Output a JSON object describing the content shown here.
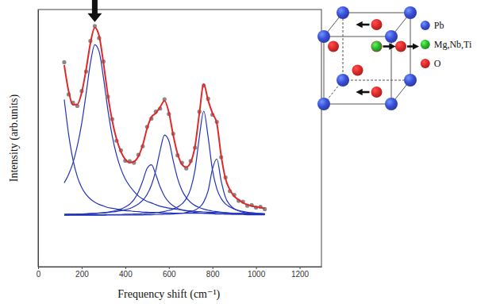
{
  "chart_data": {
    "type": "line",
    "x_label": "Frequency shift (cm⁻¹)",
    "y_label": "Intensity (arb.units)",
    "xlim": [
      0,
      1300
    ],
    "xticks": [
      0,
      200,
      400,
      600,
      800,
      1000,
      1200
    ],
    "ylim": [
      0,
      100
    ],
    "tick_labels": "x",
    "grid": false,
    "x": [
      120,
      140,
      160,
      180,
      200,
      220,
      240,
      260,
      280,
      300,
      320,
      340,
      360,
      380,
      400,
      420,
      440,
      460,
      480,
      500,
      520,
      540,
      560,
      580,
      600,
      620,
      640,
      660,
      680,
      700,
      720,
      740,
      760,
      780,
      800,
      820,
      840,
      860,
      880,
      900,
      920,
      940,
      960,
      980,
      1000,
      1020,
      1040
    ],
    "series": [
      {
        "type": "line",
        "color": "#2233bb",
        "line_style": "solid",
        "values": [
          65,
          51.5,
          41.6,
          35,
          30.8,
          28.1,
          26.3,
          25.1,
          24.2,
          23.6,
          23,
          22.7,
          22.4,
          22.1,
          21.8,
          21.7,
          21.5,
          21.4,
          21.2,
          21.2,
          21.1,
          21.1,
          20.9,
          20.9,
          20.9,
          20.8,
          20.8,
          20.8,
          20.8,
          20.8,
          20.8,
          20.8,
          20.8,
          20.8,
          20.8,
          20.6,
          20.6,
          20.6,
          20.6,
          20.6,
          20.6,
          20.6,
          20.6,
          20.6,
          20.6,
          20.6,
          20.6
        ]
      },
      {
        "type": "line",
        "color": "#2233bb",
        "line_style": "solid",
        "values": [
          32.6,
          35.9,
          40.4,
          47,
          55.7,
          67.1,
          79.1,
          86.3,
          83.6,
          73.4,
          61.1,
          50.9,
          43.4,
          38,
          34.1,
          31.4,
          29.3,
          27.5,
          26.3,
          25.4,
          24.8,
          24.1,
          23.5,
          23.1,
          22.8,
          22.5,
          22.3,
          22,
          21.8,
          21.7,
          21.5,
          21.4,
          21.3,
          21.2,
          21.1,
          21.1,
          21,
          20.9,
          20.8,
          20.8,
          20.8,
          20.7,
          20.7,
          20.6,
          20.6,
          20.6,
          20.5
        ]
      },
      {
        "type": "line",
        "color": "#2233bb",
        "line_style": "solid",
        "values": [
          20.3,
          20.4,
          20.4,
          20.4,
          20.5,
          20.5,
          20.6,
          20.7,
          20.9,
          21,
          21.2,
          21.5,
          21.9,
          22.4,
          23.2,
          24.3,
          26.1,
          29,
          33.3,
          38.2,
          39.6,
          35.8,
          31,
          27.4,
          25.1,
          23.7,
          22.7,
          22.1,
          21.7,
          21.4,
          21.1,
          20.9,
          20.8,
          20.7,
          20.6,
          20.5,
          20.5,
          20.4,
          20.4,
          20.3,
          20.3,
          20.3,
          20.2,
          20.2,
          20.2,
          20.2,
          20.2
        ]
      },
      {
        "type": "line",
        "color": "#2233bb",
        "line_style": "solid",
        "values": [
          20.4,
          20.4,
          20.4,
          20.5,
          20.5,
          20.6,
          20.7,
          20.7,
          20.8,
          20.9,
          21.1,
          21.3,
          21.5,
          21.8,
          22.1,
          22.6,
          23.4,
          24.4,
          25.8,
          28.1,
          31.7,
          37.4,
          45.2,
          51.2,
          48.9,
          41.2,
          34.3,
          29.7,
          26.8,
          25,
          23.8,
          23,
          22.4,
          22,
          21.6,
          21.4,
          21.2,
          21,
          20.9,
          20.8,
          20.7,
          20.6,
          20.5,
          20.5,
          20.5,
          20.4,
          20.4
        ]
      },
      {
        "type": "line",
        "color": "#2233bb",
        "line_style": "solid",
        "values": [
          20.1,
          20.1,
          20.2,
          20.2,
          20.2,
          20.2,
          20.2,
          20.2,
          20.2,
          20.2,
          20.3,
          20.3,
          20.3,
          20.3,
          20.4,
          20.4,
          20.5,
          20.5,
          20.6,
          20.7,
          20.8,
          21,
          21.2,
          21.5,
          21.9,
          22.4,
          23.2,
          24.4,
          26.5,
          30.3,
          37.6,
          50.5,
          60.5,
          50.5,
          37.6,
          30.3,
          26.5,
          24.4,
          23.2,
          22.4,
          21.9,
          21.5,
          21.2,
          21,
          20.8,
          20.7,
          20.6
        ]
      },
      {
        "type": "line",
        "color": "#2233bb",
        "line_style": "solid",
        "values": [
          20,
          20,
          20,
          20,
          20,
          20,
          20,
          20,
          20,
          20,
          20.1,
          20.1,
          20.1,
          20.1,
          20.1,
          20.1,
          20.1,
          20.1,
          20.1,
          20.2,
          20.2,
          20.3,
          20.3,
          20.4,
          20.4,
          20.5,
          20.6,
          20.8,
          21.1,
          21.4,
          22,
          23.1,
          25.2,
          29.5,
          38,
          41.9,
          33.3,
          26.9,
          24,
          22.5,
          21.7,
          21.2,
          20.9,
          20.7,
          20.6,
          20.5,
          20.4
        ]
      },
      {
        "type": "scatter",
        "color": "#8a8a8a",
        "marker": "circle",
        "values": [
          79.5,
          67,
          63.8,
          62.5,
          68.3,
          75.9,
          87.8,
          93.6,
          88.9,
          79.8,
          66.1,
          57.4,
          49,
          45.3,
          41.2,
          41,
          40.4,
          43.5,
          46.8,
          54.4,
          57.6,
          60.3,
          61.5,
          65.1,
          59.4,
          51.7,
          43.3,
          40.4,
          38.2,
          41.1,
          46.3,
          60.3,
          70.4,
          65.3,
          59.1,
          56.3,
          42.6,
          34.7,
          29.4,
          27.9,
          25.6,
          25.3,
          23.7,
          24,
          23,
          23.3,
          22.4
        ]
      },
      {
        "type": "line",
        "color": "#e02a2a",
        "line_style": "solid",
        "values": [
          78.4,
          68.3,
          63,
          63.1,
          67.7,
          76.5,
          86.9,
          93,
          89.7,
          79.1,
          66.8,
          56.8,
          49.6,
          44.7,
          41.7,
          40.5,
          40.9,
          42.9,
          47.3,
          53.8,
          58.2,
          59.7,
          62.1,
          64.5,
          60,
          51.1,
          43.9,
          39.8,
          38.7,
          40.6,
          46.8,
          59.7,
          71,
          64.7,
          59.7,
          55.8,
          43.1,
          34.2,
          29.9,
          27.4,
          26,
          24.9,
          24.1,
          23.6,
          23.3,
          23,
          22.7
        ]
      }
    ],
    "annotations": [
      {
        "text": "Pb",
        "color": "#3a4fd8"
      },
      {
        "text": "Mg,Nb,Ti",
        "color": "#2fb82f"
      },
      {
        "text": "O",
        "color": "#e02a2a"
      }
    ]
  }
}
